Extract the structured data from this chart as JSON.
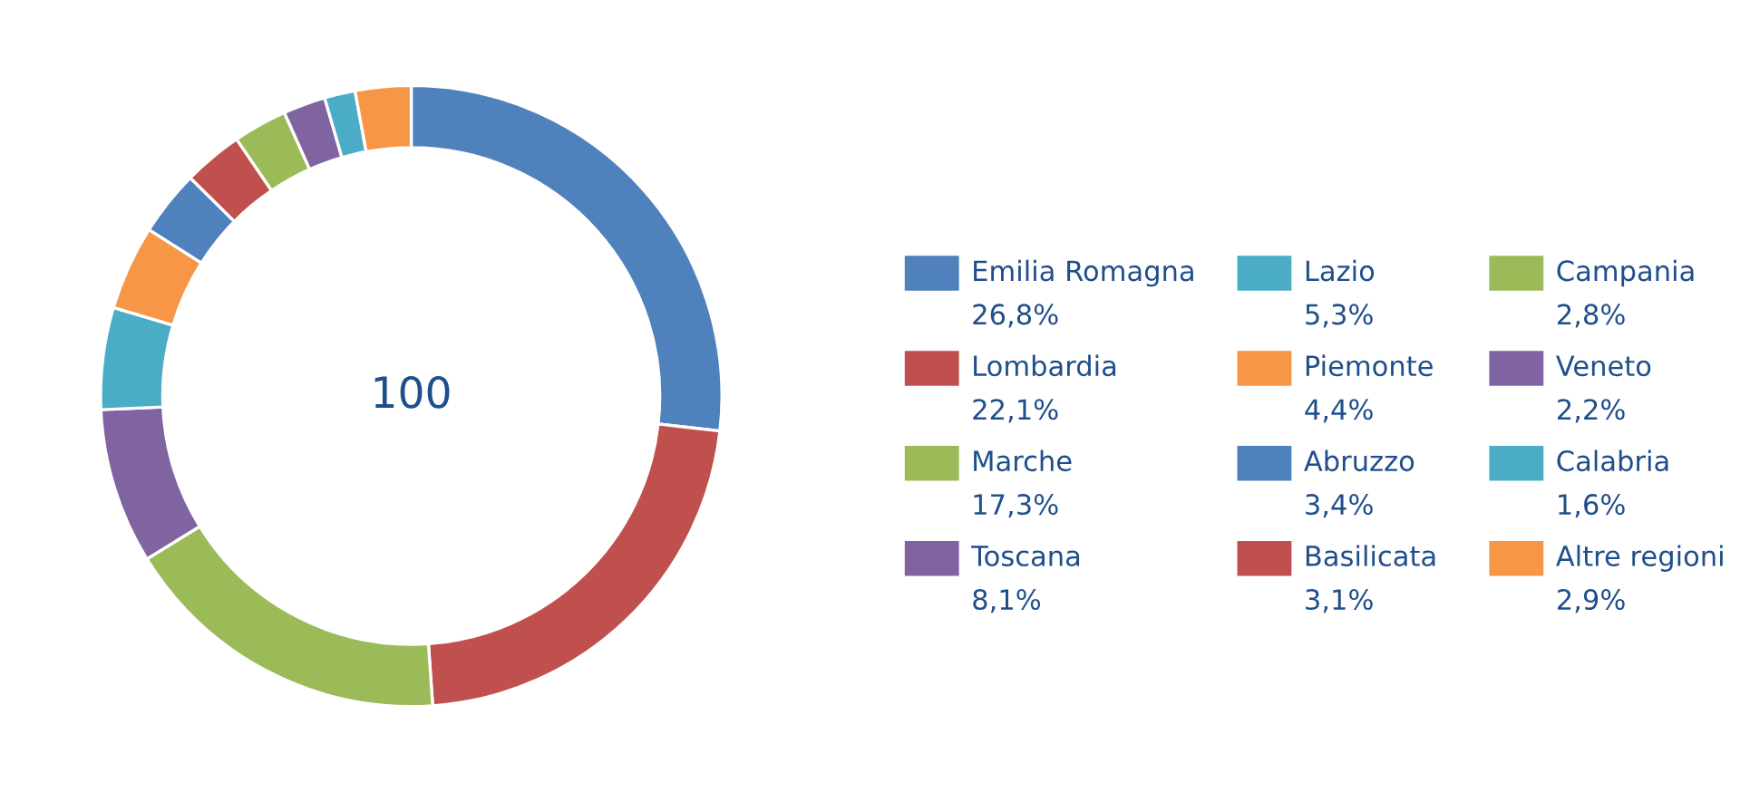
{
  "chart_data": {
    "type": "donut",
    "categories": [
      "Emilia Romagna",
      "Lombardia",
      "Marche",
      "Toscana",
      "Lazio",
      "Piemonte",
      "Abruzzo",
      "Basilicata",
      "Campania",
      "Veneto",
      "Calabria",
      "Altre regioni"
    ],
    "values": [
      26.8,
      22.1,
      17.3,
      8.1,
      5.3,
      4.4,
      3.4,
      3.1,
      2.8,
      2.2,
      1.6,
      2.9
    ],
    "value_labels": [
      "26,8%",
      "22,1%",
      "17,3%",
      "8,1%",
      "5,3%",
      "4,4%",
      "3,4%",
      "3,1%",
      "2,8%",
      "2,2%",
      "1,6%",
      "2,9%"
    ],
    "colors": [
      "#4f81bd",
      "#c0504d",
      "#9bbb59",
      "#8064a2",
      "#4bacc6",
      "#f79646",
      "#4f81bd",
      "#c0504d",
      "#9bbb59",
      "#8064a2",
      "#4bacc6",
      "#f79646"
    ],
    "annotations": [
      "100"
    ],
    "legend": "right"
  }
}
